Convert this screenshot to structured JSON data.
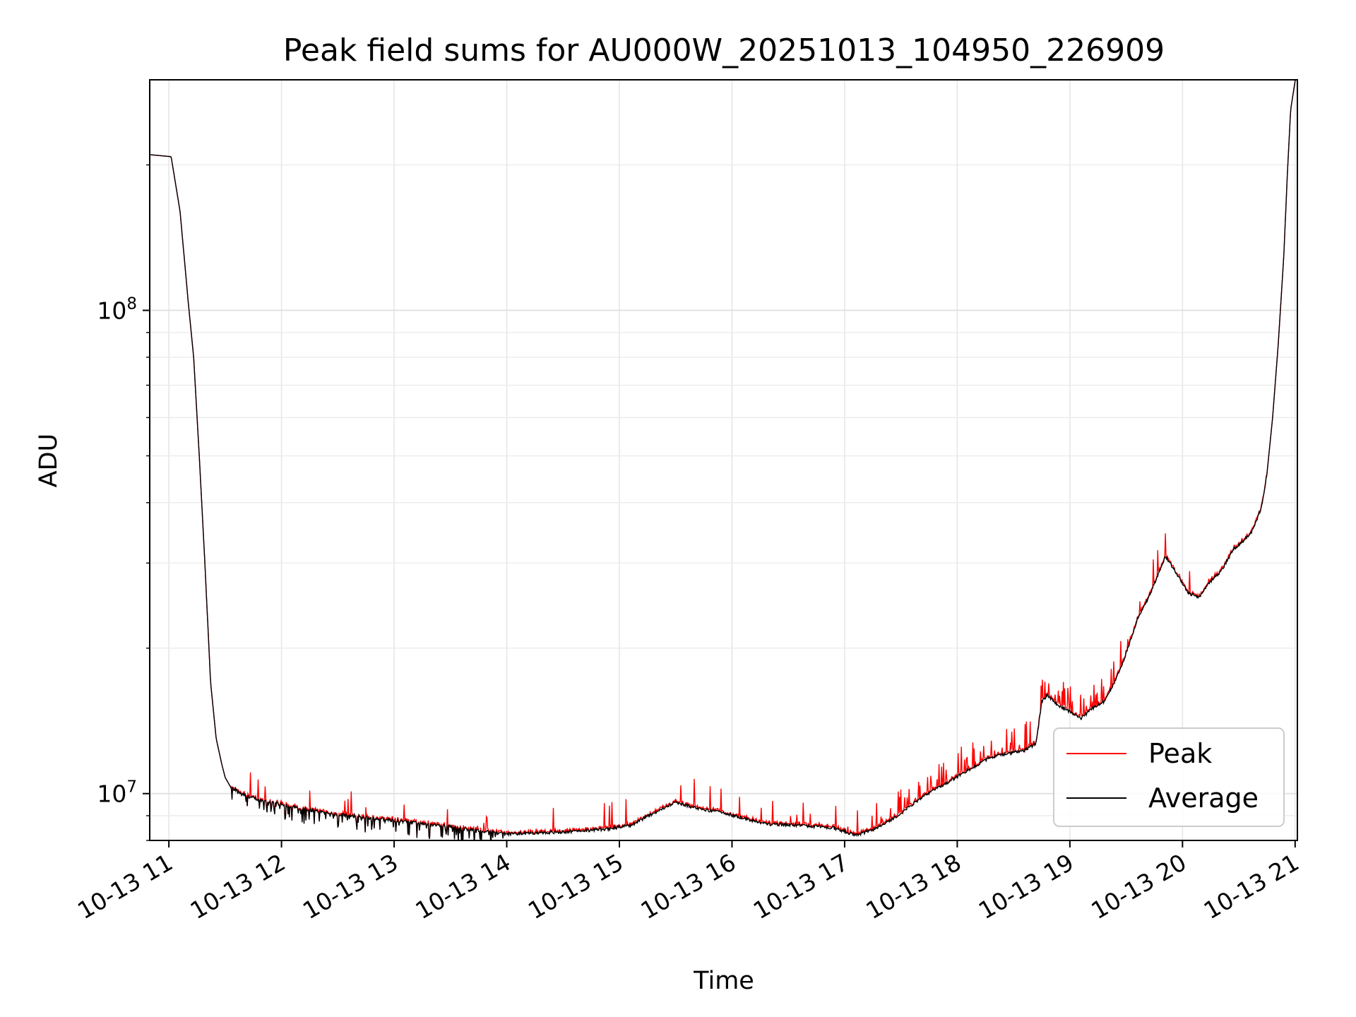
{
  "chart_data": {
    "type": "line",
    "title": "Peak field sums for AU000W_20251013_104950_226909",
    "xlabel": "Time",
    "ylabel": "ADU",
    "yscale": "log",
    "ylim": [
      8000000,
      300000000
    ],
    "xlim_hours": [
      10.83,
      21.02
    ],
    "grid": true,
    "legend_position": "lower-right",
    "x_ticks": [
      {
        "hour": 11,
        "label": "10-13 11"
      },
      {
        "hour": 12,
        "label": "10-13 12"
      },
      {
        "hour": 13,
        "label": "10-13 13"
      },
      {
        "hour": 14,
        "label": "10-13 14"
      },
      {
        "hour": 15,
        "label": "10-13 15"
      },
      {
        "hour": 16,
        "label": "10-13 16"
      },
      {
        "hour": 17,
        "label": "10-13 17"
      },
      {
        "hour": 18,
        "label": "10-13 18"
      },
      {
        "hour": 19,
        "label": "10-13 19"
      },
      {
        "hour": 20,
        "label": "10-13 20"
      },
      {
        "hour": 21,
        "label": "10-13 21"
      }
    ],
    "y_major_ticks": [
      {
        "value": 10000000,
        "base": "10",
        "exp": "7"
      },
      {
        "value": 100000000,
        "base": "10",
        "exp": "8"
      }
    ],
    "y_minor_ticks": [
      8000000,
      9000000,
      20000000,
      30000000,
      40000000,
      50000000,
      60000000,
      70000000,
      80000000,
      90000000,
      200000000
    ],
    "series": [
      {
        "name": "Peak",
        "color": "#ff0000"
      },
      {
        "name": "Average",
        "color": "#000000"
      }
    ],
    "baseline_hours": [
      10.83,
      11.02,
      11.1,
      11.17,
      11.22,
      11.27,
      11.32,
      11.37,
      11.42,
      11.47,
      11.5,
      11.55,
      11.65,
      11.8,
      12.0,
      12.3,
      12.6,
      13.0,
      13.4,
      13.8,
      14.0,
      14.3,
      14.6,
      14.9,
      15.1,
      15.3,
      15.5,
      15.7,
      15.9,
      16.1,
      16.3,
      16.6,
      16.9,
      17.1,
      17.3,
      17.5,
      17.7,
      17.9,
      18.1,
      18.3,
      18.45,
      18.6,
      18.7,
      18.75,
      18.8,
      18.9,
      19.0,
      19.1,
      19.2,
      19.3,
      19.4,
      19.5,
      19.6,
      19.7,
      19.8,
      19.85,
      19.95,
      20.05,
      20.15,
      20.25,
      20.35,
      20.45,
      20.55,
      20.62,
      20.7,
      20.75,
      20.8,
      20.85,
      20.9,
      20.93,
      20.96,
      21.02
    ],
    "baseline_values": [
      210000000,
      208000000,
      160000000,
      105000000,
      80000000,
      50000000,
      30000000,
      17000000,
      13000000,
      11500000,
      10800000,
      10300000,
      10000000,
      9700000,
      9500000,
      9200000,
      9000000,
      8800000,
      8600000,
      8350000,
      8250000,
      8300000,
      8350000,
      8450000,
      8600000,
      9100000,
      9600000,
      9300000,
      9150000,
      8900000,
      8650000,
      8600000,
      8500000,
      8200000,
      8500000,
      9100000,
      9900000,
      10500000,
      11200000,
      11900000,
      12100000,
      12300000,
      12700000,
      15500000,
      16000000,
      15200000,
      14800000,
      14300000,
      15000000,
      15500000,
      17000000,
      19500000,
      23000000,
      25500000,
      29000000,
      31000000,
      28500000,
      26000000,
      25500000,
      27500000,
      29000000,
      32000000,
      33500000,
      35000000,
      39000000,
      46000000,
      60000000,
      85000000,
      130000000,
      190000000,
      260000000,
      320000000
    ]
  }
}
